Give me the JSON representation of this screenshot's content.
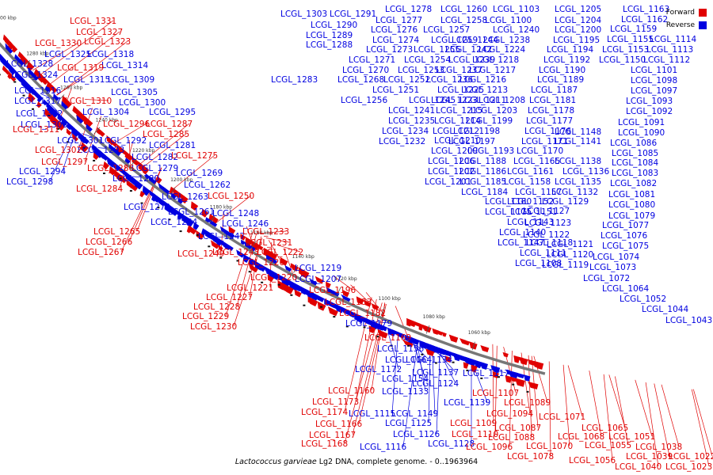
{
  "legend": {
    "forward_label": "Forward",
    "reverse_label": "Reverse",
    "forward_color": "#e00000",
    "reverse_color": "#0000e0"
  },
  "caption": {
    "organism": "Lactococcus garvieae",
    "rest": " Lg2 DNA, complete genome. - 0..1963964"
  },
  "map_data": {
    "type": "circular-genome-map-partial-view",
    "backbone_color": "#777777",
    "forward_color": "#e00000",
    "reverse_color": "#0000e0",
    "ticks": [
      "1060 kbp",
      "1080 kbp",
      "1100 kbp",
      "1120 kbp",
      "1140 kbp",
      "1160 kbp",
      "1180 kbp",
      "1200 kbp",
      "1220 kbp",
      "1240 kbp",
      "1260 kbp",
      "1280 kbp",
      "1300 kbp"
    ],
    "reverse_labels": [
      "LCGL_1043",
      "LCGL_1044",
      "LCGL_1052",
      "LCGL_1064",
      "LCGL_1072",
      "LCGL_1073",
      "LCGL_1074",
      "LCGL_1075",
      "LCGL_1076",
      "LCGL_1077",
      "LCGL_1079",
      "LCGL_1080",
      "LCGL_1081",
      "LCGL_1082",
      "LCGL_1083",
      "LCGL_1084",
      "LCGL_1085",
      "LCGL_1086",
      "LCGL_1090",
      "LCGL_1091",
      "LCGL_1092",
      "LCGL_1093",
      "LCGL_1097",
      "LCGL_1098",
      "LCGL_1101",
      "LCGL_1112",
      "LCGL_1113",
      "LCGL_1114",
      "LCGL_1150",
      "LCGL_1153",
      "LCGL_1155",
      "LCGL_1159",
      "LCGL_1162",
      "LCGL_1163",
      "LCGL_1205",
      "LCGL_1204",
      "LCGL_1200",
      "LCGL_1195",
      "LCGL_1194",
      "LCGL_1192",
      "LCGL_1190",
      "LCGL_1189",
      "LCGL_1187",
      "LCGL_1181",
      "LCGL_1178",
      "LCGL_1177",
      "LCGL_1176",
      "LCGL_1171",
      "LCGL_1170",
      "LCGL_1165",
      "LCGL_1161",
      "LCGL_1158",
      "LCGL_1157",
      "LCGL_1152",
      "LCGL_1148",
      "LCGL_1141",
      "LCGL_1138",
      "LCGL_1136",
      "LCGL_1135",
      "LCGL_1132",
      "LCGL_1129",
      "LCGL_1127",
      "LCGL_1123",
      "LCGL_1122",
      "LCGL_1121",
      "LCGL_1120",
      "LCGL_1119",
      "LCGL_1118",
      "LCGL_1111",
      "LCGL_1108",
      "LCGL_1103",
      "LCGL_1100",
      "LCGL_1240",
      "LCGL_1238",
      "LCGL_1224",
      "LCGL_1218",
      "LCGL_1217",
      "LCGL_1216",
      "LCGL_1213",
      "LCGL_1211",
      "LCGL_1208",
      "LCGL_1203",
      "LCGL_1199",
      "LCGL_1198",
      "LCGL_1197",
      "LCGL_1193",
      "LCGL_1188",
      "LCGL_1186",
      "LCGL_1185",
      "LCGL_1184",
      "LCGL_1180",
      "LCGL_1175",
      "LCGL_1151",
      "LCGL_1143",
      "LCGL_1140",
      "LCGL_1147",
      "LCGL_1260",
      "LCGL_1258",
      "LCGL_1257",
      "LCGL_1244",
      "LCGL_1242",
      "LCGL_1239",
      "LCGL_1237",
      "LCGL_1236",
      "LCGL_1225",
      "LCGL_1223",
      "LCGL_1215",
      "LCGL_1214",
      "LCGL_1212",
      "LCGL_1210",
      "LCGL_1209",
      "LCGL_1206",
      "LCGL_1202",
      "LCGL_1201",
      "LCGL_1278",
      "LCGL_1277",
      "LCGL_1276",
      "LCGL_1274",
      "LCGL_1259",
      "LCGL_1273",
      "LCGL_1255",
      "LCGL_1271",
      "LCGL_1254",
      "LCGL_1270",
      "LCGL_1253",
      "LCGL_1268",
      "LCGL_1252",
      "LCGL_1251",
      "LCGL_1256",
      "LCGL_1245",
      "LCGL_1241",
      "LCGL_1235",
      "LCGL_1234",
      "LCGL_1232",
      "LCGL_1303",
      "LCGL_1291",
      "LCGL_1290",
      "LCGL_1289",
      "LCGL_1288",
      "LCGL_1283",
      "LCGL_1328",
      "LCGL_1325",
      "LCGL_1318",
      "LCGL_1324",
      "LCGL_1314",
      "LCGL_1315",
      "LCGL_1309",
      "LCGL_1316",
      "LCGL_1305",
      "LCGL_1317",
      "LCGL_1300",
      "LCGL_1312",
      "LCGL_1304",
      "LCGL_1295",
      "LCGL_1306",
      "LCGL_1301",
      "LCGL_1292",
      "LCGL_1293",
      "LCGL_1281",
      "LCGL_1282",
      "LCGL_1294",
      "LCGL_1279",
      "LCGL_1298",
      "LCGL_1280",
      "LCGL_1269",
      "LCGL_1262",
      "LCGL_1263",
      "LCGL_1272",
      "LCGL_1261",
      "LCGL_1248",
      "LCGL_1264",
      "LCGL_1246",
      "LCGL_1247",
      "LCGL_1219",
      "LCGL_1207",
      "LCGL_1179",
      "LCGL_1156",
      "LCGL_1164",
      "LCGL_1134",
      "LCGL_1172",
      "LCGL_1137",
      "LCGL_1117",
      "LCGL_1154",
      "LCGL_1124",
      "LCGL_1133",
      "LCGL_1139",
      "LCGL_1115",
      "LCGL_1149",
      "LCGL_1125",
      "LCGL_1126",
      "LCGL_1128",
      "LCGL_1116",
      "LCGL_1130"
    ],
    "forward_labels": [
      "LCGL_1331",
      "LCGL_1327",
      "LCGL_1330",
      "LCGL_1323",
      "LCGL_1319",
      "LCGL_1310",
      "LCGL_1296",
      "LCGL_1287",
      "LCGL_1311",
      "LCGL_1285",
      "LCGL_1302",
      "LCGL_1297",
      "LCGL_1286",
      "LCGL_1275",
      "LCGL_1284",
      "LCGL_1250",
      "LCGL_1265",
      "LCGL_1266",
      "LCGL_1267",
      "LCGL_1249",
      "LCGL_1243",
      "LCGL_1233",
      "LCGL_1231",
      "LCGL_1222",
      "LCGL_1226",
      "LCGL_1220",
      "LCGL_1221",
      "LCGL_1227",
      "LCGL_1228",
      "LCGL_1229",
      "LCGL_1230",
      "LCGL_1196",
      "LCGL_1183",
      "LCGL_1182",
      "LCGL_1169",
      "LCGL_1160",
      "LCGL_1173",
      "LCGL_1174",
      "LCGL_1166",
      "LCGL_1167",
      "LCGL_1168",
      "LCGL_1107",
      "LCGL_1089",
      "LCGL_1094",
      "LCGL_1109",
      "LCGL_1110",
      "LCGL_1096",
      "LCGL_1087",
      "LCGL_1088",
      "LCGL_1078",
      "LCGL_1071",
      "LCGL_1068",
      "LCGL_1070",
      "LCGL_1065",
      "LCGL_1051",
      "LCGL_1055",
      "LCGL_1056",
      "LCGL_1038",
      "LCGL_1039",
      "LCGL_1040",
      "LCGL_1022",
      "LCGL_1023"
    ]
  }
}
